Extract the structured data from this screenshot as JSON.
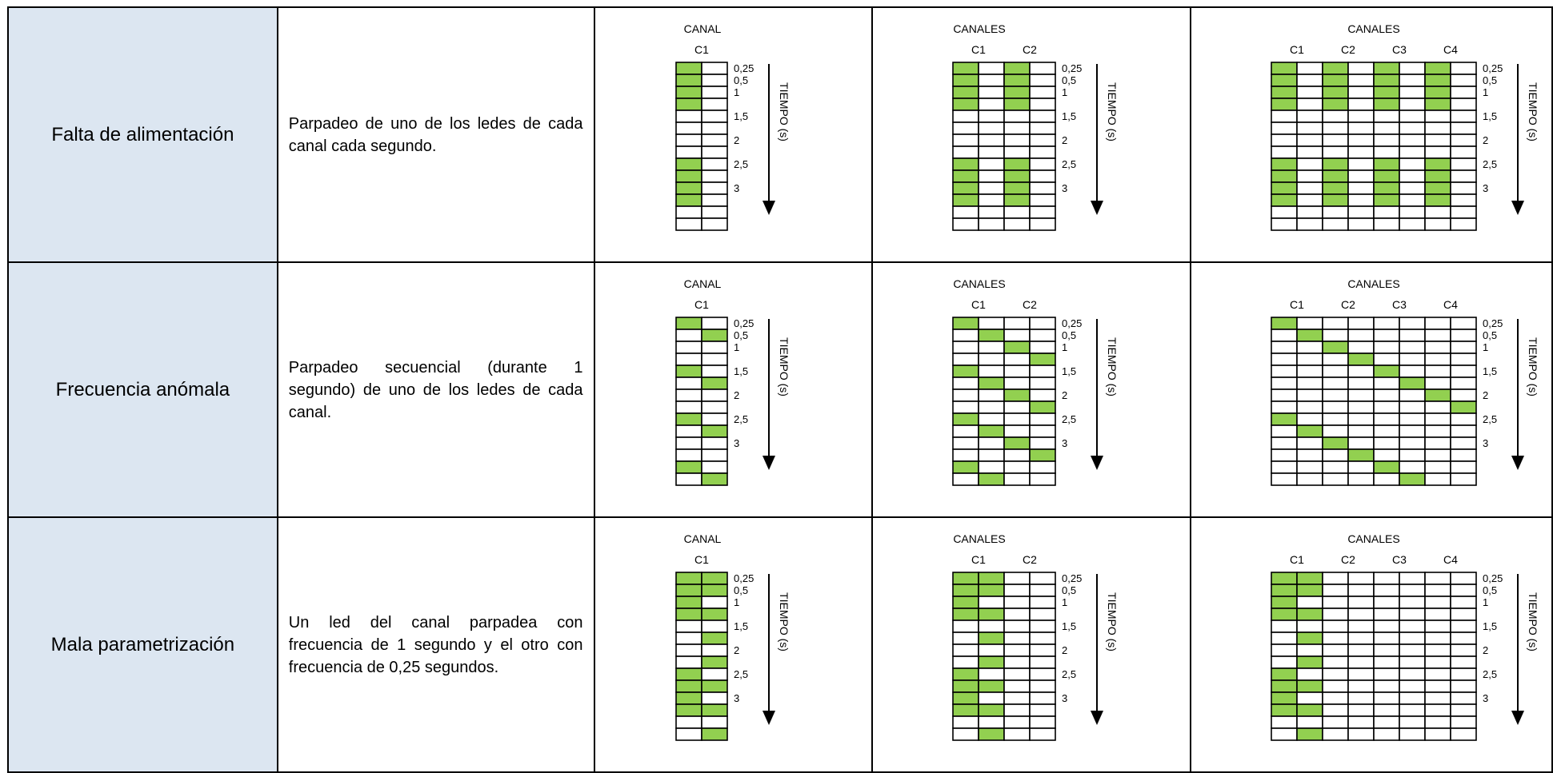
{
  "rows": [
    {
      "label": "Falta de alimentación",
      "description": "Parpadeo de uno de los ledes de cada canal cada segundo.",
      "diagrams": [
        {
          "header": "CANAL",
          "channel_labels": [
            "C1"
          ],
          "axis_label": "TIEMPO (s)",
          "time_ticks": [
            "0,25",
            "0,5",
            "1",
            "1,5",
            "2",
            "2,5",
            "3"
          ],
          "cells": [
            [
              0,
              1,
              2,
              3,
              8,
              9,
              10,
              11
            ],
            []
          ]
        },
        {
          "header": "CANALES",
          "channel_labels": [
            "C1",
            "C2"
          ],
          "axis_label": "TIEMPO (s)",
          "time_ticks": [
            "0,25",
            "0,5",
            "1",
            "1,5",
            "2",
            "2,5",
            "3"
          ],
          "cells": [
            [
              0,
              1,
              2,
              3,
              8,
              9,
              10,
              11
            ],
            [],
            [
              0,
              1,
              2,
              3,
              8,
              9,
              10,
              11
            ],
            []
          ]
        },
        {
          "header": "CANALES",
          "channel_labels": [
            "C1",
            "C2",
            "C3",
            "C4"
          ],
          "axis_label": "TIEMPO (s)",
          "time_ticks": [
            "0,25",
            "0,5",
            "1",
            "1,5",
            "2",
            "2,5",
            "3"
          ],
          "cells": [
            [
              0,
              1,
              2,
              3,
              8,
              9,
              10,
              11
            ],
            [],
            [
              0,
              1,
              2,
              3,
              8,
              9,
              10,
              11
            ],
            [],
            [
              0,
              1,
              2,
              3,
              8,
              9,
              10,
              11
            ],
            [],
            [
              0,
              1,
              2,
              3,
              8,
              9,
              10,
              11
            ],
            []
          ]
        }
      ]
    },
    {
      "label": "Frecuencia anómala",
      "description": "Parpadeo secuencial (durante 1 segundo) de uno de los ledes de cada canal.",
      "diagrams": [
        {
          "header": "CANAL",
          "channel_labels": [
            "C1"
          ],
          "axis_label": "TIEMPO (s)",
          "time_ticks": [
            "0,25",
            "0,5",
            "1",
            "1,5",
            "2",
            "2,5",
            "3"
          ],
          "cells": [
            [
              0,
              4,
              8,
              12
            ],
            [
              1,
              5,
              9,
              13
            ]
          ]
        },
        {
          "header": "CANALES",
          "channel_labels": [
            "C1",
            "C2"
          ],
          "axis_label": "TIEMPO (s)",
          "time_ticks": [
            "0,25",
            "0,5",
            "1",
            "1,5",
            "2",
            "2,5",
            "3"
          ],
          "cells": [
            [
              0,
              4,
              8,
              12
            ],
            [
              1,
              5,
              9,
              13
            ],
            [
              2,
              6,
              10
            ],
            [
              3,
              7,
              11
            ]
          ]
        },
        {
          "header": "CANALES",
          "channel_labels": [
            "C1",
            "C2",
            "C3",
            "C4"
          ],
          "axis_label": "TIEMPO (s)",
          "time_ticks": [
            "0,25",
            "0,5",
            "1",
            "1,5",
            "2",
            "2,5",
            "3"
          ],
          "cells": [
            [
              0,
              8
            ],
            [
              1,
              9
            ],
            [
              2,
              10
            ],
            [
              3,
              11
            ],
            [
              4,
              12
            ],
            [
              5,
              13
            ],
            [
              6
            ],
            [
              7
            ]
          ]
        }
      ]
    },
    {
      "label": "Mala parametrización",
      "description": "Un led del canal parpadea con frecuencia de 1 segundo y el otro con frecuencia de 0,25 segundos.",
      "diagrams": [
        {
          "header": "CANAL",
          "channel_labels": [
            "C1"
          ],
          "axis_label": "TIEMPO (s)",
          "time_ticks": [
            "0,25",
            "0,5",
            "1",
            "1,5",
            "2",
            "2,5",
            "3"
          ],
          "cells": [
            [
              0,
              1,
              2,
              3,
              8,
              9,
              10,
              11
            ],
            [
              0,
              1,
              3,
              5,
              7,
              9,
              11,
              13
            ]
          ]
        },
        {
          "header": "CANALES",
          "channel_labels": [
            "C1",
            "C2"
          ],
          "axis_label": "TIEMPO (s)",
          "time_ticks": [
            "0,25",
            "0,5",
            "1",
            "1,5",
            "2",
            "2,5",
            "3"
          ],
          "cells": [
            [
              0,
              1,
              2,
              3,
              8,
              9,
              10,
              11
            ],
            [
              0,
              1,
              3,
              5,
              7,
              9,
              11,
              13
            ],
            [],
            []
          ]
        },
        {
          "header": "CANALES",
          "channel_labels": [
            "C1",
            "C2",
            "C3",
            "C4"
          ],
          "axis_label": "TIEMPO (s)",
          "time_ticks": [
            "0,25",
            "0,5",
            "1",
            "1,5",
            "2",
            "2,5",
            "3"
          ],
          "cells": [
            [
              0,
              1,
              2,
              3,
              8,
              9,
              10,
              11
            ],
            [
              0,
              1,
              3,
              5,
              7,
              9,
              11,
              13
            ],
            [],
            [],
            [],
            [],
            [],
            []
          ]
        }
      ]
    }
  ],
  "colors": {
    "led_on": "#92d050",
    "label_bg": "#dce6f1",
    "border": "#000000"
  }
}
